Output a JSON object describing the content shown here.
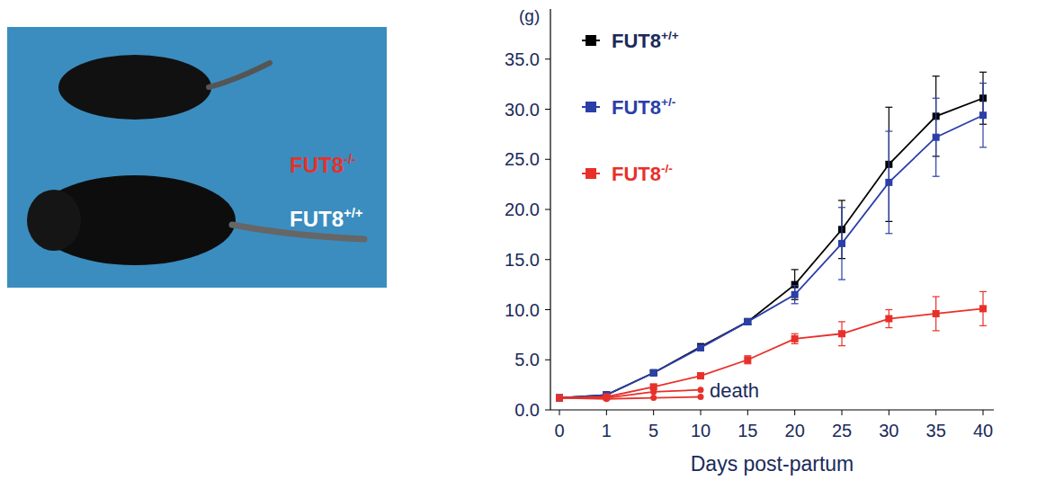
{
  "chart_data": {
    "type": "line",
    "y_label": "(g)",
    "x_label": "Days post-partum",
    "categories": [
      "0",
      "1",
      "5",
      "10",
      "15",
      "20",
      "25",
      "30",
      "35",
      "40"
    ],
    "ylim": [
      0,
      40
    ],
    "yticks": [
      {
        "value": 0,
        "label": "0.0"
      },
      {
        "value": 5,
        "label": "5.0"
      },
      {
        "value": 10,
        "label": "10.0"
      },
      {
        "value": 15,
        "label": "15.0"
      },
      {
        "value": 20,
        "label": "20.0"
      },
      {
        "value": 25,
        "label": "25.0"
      },
      {
        "value": 30,
        "label": "30.0"
      },
      {
        "value": 35,
        "label": "35.0"
      }
    ],
    "legend": "upper left",
    "grid": false,
    "annotations": [
      "death"
    ],
    "series": [
      {
        "name": "FUT8+/+",
        "color": "#000000",
        "marker": "square",
        "values": [
          1.2,
          1.5,
          3.7,
          6.3,
          8.8,
          12.5,
          18.0,
          24.5,
          29.3,
          31.1
        ],
        "errors": [
          0.1,
          0.1,
          0.2,
          0.3,
          0.3,
          1.5,
          2.9,
          5.7,
          4.0,
          2.6
        ]
      },
      {
        "name": "FUT8+/-",
        "color": "#2b3fa8",
        "marker": "square",
        "values": [
          1.2,
          1.5,
          3.7,
          6.2,
          8.8,
          11.5,
          16.6,
          22.7,
          27.2,
          29.4
        ],
        "errors": [
          0.1,
          0.1,
          0.2,
          0.3,
          0.3,
          0.9,
          3.6,
          5.1,
          3.9,
          3.2
        ]
      },
      {
        "name": "FUT8-/-",
        "color": "#e8302a",
        "marker": "square",
        "values": [
          1.2,
          1.3,
          2.3,
          3.4,
          5.0,
          7.1,
          7.6,
          9.1,
          9.6,
          10.1
        ],
        "errors": [
          0.1,
          0.1,
          0.2,
          0.3,
          0.4,
          0.5,
          1.2,
          0.9,
          1.7,
          1.7
        ]
      },
      {
        "color": "#e8302a",
        "marker": "circle",
        "values": [
          1.2,
          1.2,
          1.8,
          2.0,
          null,
          null,
          null,
          null,
          null,
          null
        ]
      },
      {
        "color": "#e8302a",
        "marker": "circle",
        "values": [
          1.2,
          1.1,
          1.2,
          1.3,
          null,
          null,
          null,
          null,
          null,
          null
        ]
      }
    ]
  },
  "photo": {
    "labels": [
      {
        "text": "FUT8-/-",
        "color": "#e8302a"
      },
      {
        "text": "FUT8+/+",
        "color": "#ffffff"
      }
    ]
  }
}
